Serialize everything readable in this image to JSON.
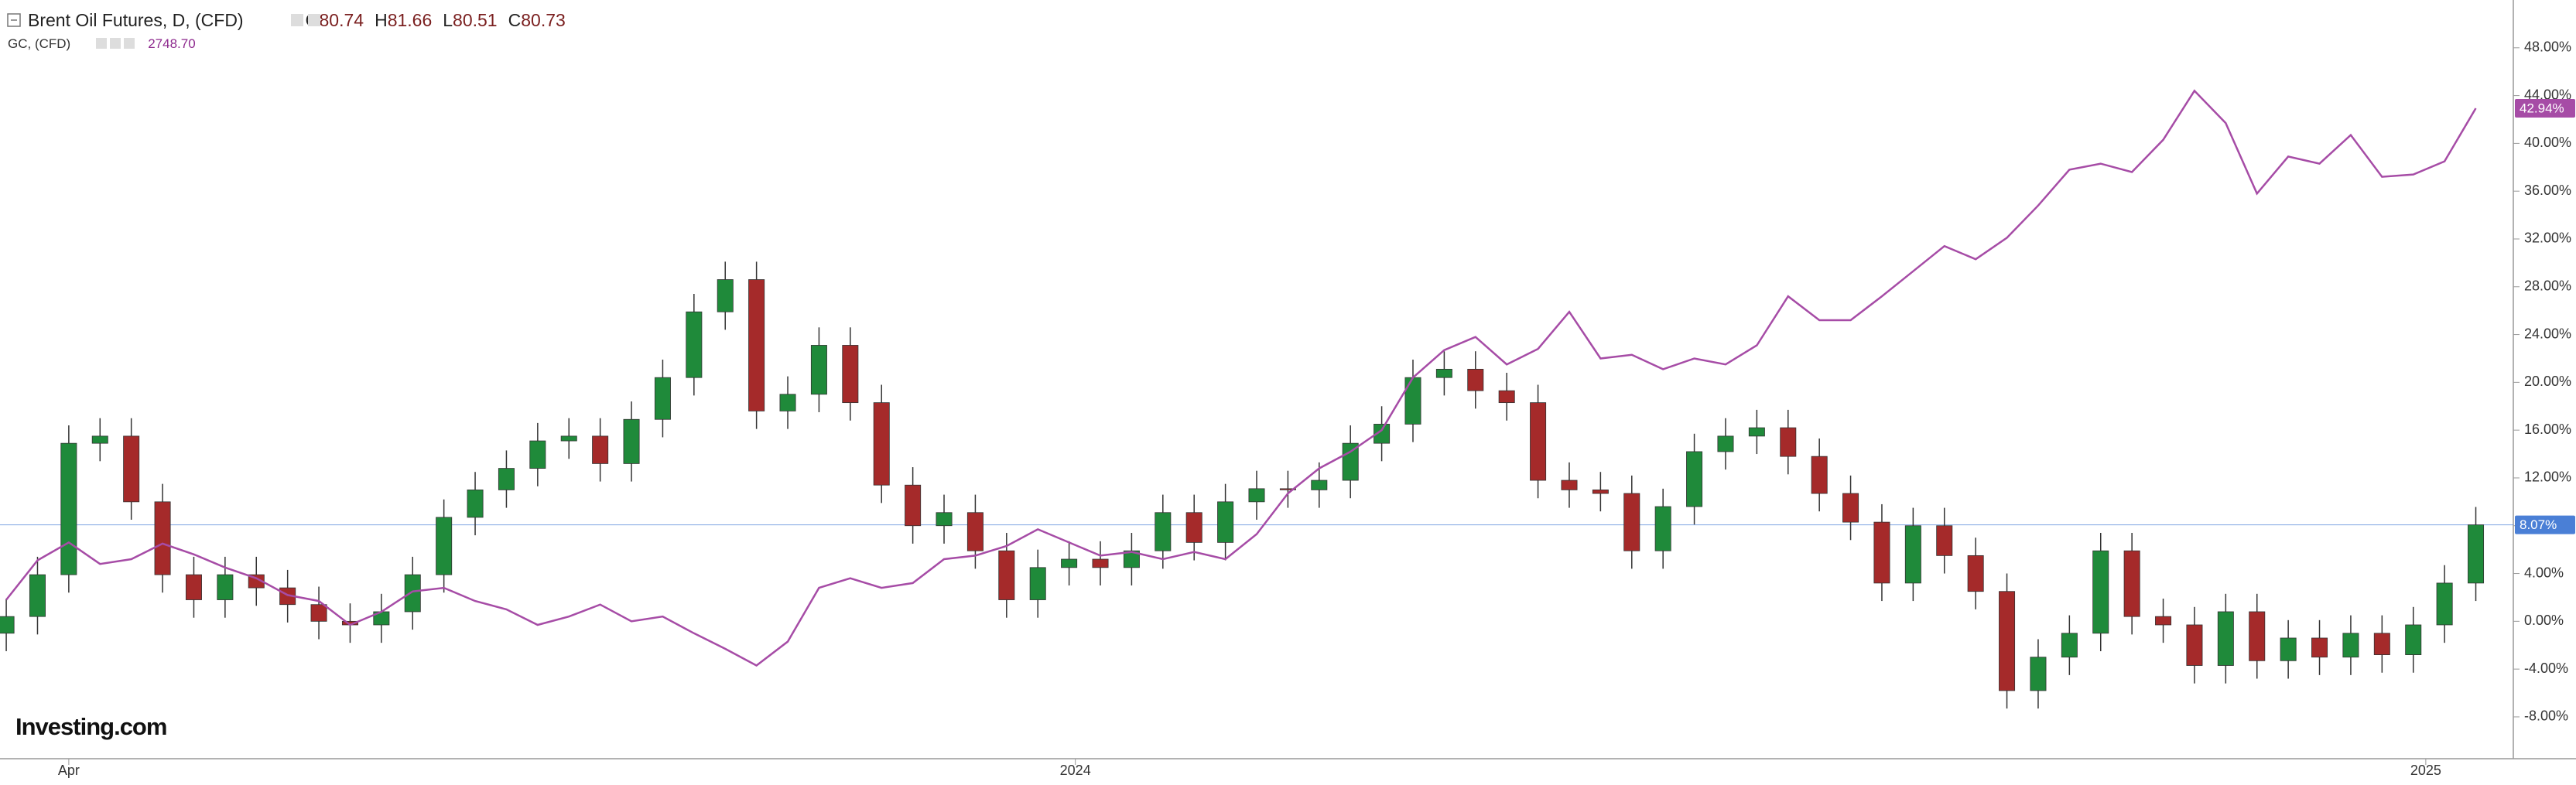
{
  "chart_data": {
    "type": "candlestick",
    "watermark": "Investing.com",
    "ylim": [
      -11.5,
      52
    ],
    "yticks": [
      {
        "value": -8,
        "label": "-8.00%"
      },
      {
        "value": -4,
        "label": "-4.00%"
      },
      {
        "value": 0,
        "label": "0.00%"
      },
      {
        "value": 4,
        "label": "4.00%"
      },
      {
        "value": 8,
        "label": "8.00%"
      },
      {
        "value": 12,
        "label": "12.00%"
      },
      {
        "value": 16,
        "label": "16.00%"
      },
      {
        "value": 20,
        "label": "20.00%"
      },
      {
        "value": 24,
        "label": "24.00%"
      },
      {
        "value": 28,
        "label": "28.00%"
      },
      {
        "value": 32,
        "label": "32.00%"
      },
      {
        "value": 36,
        "label": "36.00%"
      },
      {
        "value": 40,
        "label": "40.00%"
      },
      {
        "value": 44,
        "label": "44.00%"
      },
      {
        "value": 48,
        "label": "48.00%"
      }
    ],
    "xlim": [
      -0.2,
      80.2
    ],
    "xticks": [
      {
        "value": 2,
        "label": "Apr"
      },
      {
        "value": 34.2,
        "label": "2024"
      },
      {
        "value": 77.4,
        "label": "2025"
      }
    ],
    "series": [
      {
        "name": "Brent Oil Futures, D, (CFD)",
        "type": "candlestick",
        "up_color": "#1f8a3a",
        "down_color": "#a52a2a",
        "ohlc": [
          {
            "name": "O",
            "value": 80.74
          },
          {
            "name": "H",
            "value": 81.66
          },
          {
            "name": "L",
            "value": 80.51
          },
          {
            "name": "C",
            "value": 80.73
          }
        ],
        "last": {
          "value": 8.07,
          "label": "8.07%"
        },
        "last_color": "#4a7fd6",
        "open": [
          -1.0,
          0.4,
          3.9,
          14.9,
          15.5,
          10.0,
          3.9,
          1.8,
          3.9,
          2.8,
          1.4,
          0,
          -0.3,
          0.8,
          3.9,
          8.7,
          11.0,
          12.8,
          15.1,
          15.5,
          13.2,
          16.9,
          20.4,
          25.9,
          28.6,
          17.6,
          19.0,
          23.1,
          18.3,
          11.4,
          8.0,
          9.1,
          5.9,
          1.8,
          4.5,
          5.2,
          4.5,
          5.9,
          9.1,
          6.6,
          10.0,
          11.1,
          11.0,
          11.8,
          14.9,
          16.5,
          20.4,
          21.1,
          19.3,
          18.3,
          11.8,
          11.0,
          10.7,
          5.9,
          9.6,
          14.2,
          15.5,
          16.2,
          13.8,
          10.7,
          8.3,
          3.2,
          8.0,
          5.5,
          2.5,
          -5.8,
          -3.0,
          -1.0,
          5.9,
          0.4,
          -0.3,
          -3.7,
          0.8,
          -3.3,
          -1.4,
          -3.0,
          -1.0,
          -2.8,
          -0.3,
          3.2
        ],
        "high": [
          1.9,
          5.4,
          16.4,
          17.0,
          17.0,
          11.5,
          5.4,
          5.4,
          5.4,
          4.3,
          2.9,
          1.5,
          2.3,
          5.4,
          10.2,
          12.5,
          14.3,
          16.6,
          17.0,
          17.0,
          18.4,
          21.9,
          27.4,
          30.1,
          30.1,
          20.5,
          24.6,
          24.6,
          19.8,
          12.9,
          10.6,
          10.6,
          7.4,
          6.0,
          6.7,
          6.7,
          7.4,
          10.6,
          10.6,
          11.5,
          12.6,
          12.6,
          13.3,
          16.4,
          18.0,
          21.9,
          22.6,
          22.6,
          20.8,
          19.8,
          13.3,
          12.5,
          12.2,
          11.1,
          15.7,
          17.0,
          17.7,
          17.7,
          15.3,
          12.2,
          9.8,
          9.5,
          9.5,
          7.0,
          4.0,
          -1.5,
          0.5,
          7.4,
          7.4,
          1.9,
          1.2,
          2.3,
          2.3,
          0.1,
          0.1,
          0.5,
          0.5,
          1.2,
          4.7,
          9.57
        ],
        "low": [
          -2.5,
          -1.1,
          2.4,
          13.4,
          8.5,
          2.4,
          0.3,
          0.3,
          1.3,
          -0.1,
          -1.5,
          -1.8,
          -1.8,
          -0.7,
          2.4,
          7.2,
          9.5,
          11.3,
          13.6,
          11.7,
          11.7,
          15.4,
          18.9,
          24.4,
          16.1,
          16.1,
          17.5,
          16.8,
          9.9,
          6.5,
          6.5,
          4.4,
          0.3,
          0.3,
          3.0,
          3.0,
          3.0,
          4.4,
          5.1,
          5.1,
          8.5,
          9.5,
          9.5,
          10.3,
          13.4,
          15.0,
          18.9,
          17.8,
          16.8,
          10.3,
          9.5,
          9.2,
          4.4,
          4.4,
          8.1,
          12.7,
          14.0,
          12.3,
          9.2,
          6.8,
          1.7,
          1.7,
          4.0,
          1.0,
          -7.3,
          -7.3,
          -4.5,
          -2.5,
          -1.1,
          -1.8,
          -5.2,
          -5.2,
          -4.8,
          -4.8,
          -4.5,
          -4.5,
          -4.3,
          -4.3,
          -1.8,
          1.7
        ],
        "close": [
          0.4,
          3.9,
          14.9,
          15.5,
          10.0,
          3.9,
          1.8,
          3.9,
          2.8,
          1.4,
          0,
          -0.3,
          0.8,
          3.9,
          8.7,
          11.0,
          12.8,
          15.1,
          15.5,
          13.2,
          16.9,
          20.4,
          25.9,
          28.6,
          17.6,
          19.0,
          23.1,
          18.3,
          11.4,
          8.0,
          9.1,
          5.9,
          1.8,
          4.5,
          5.2,
          4.5,
          5.9,
          9.1,
          6.6,
          10.0,
          11.1,
          11.0,
          11.8,
          14.9,
          16.5,
          20.4,
          21.1,
          19.3,
          18.3,
          11.8,
          11.0,
          10.7,
          5.9,
          9.6,
          14.2,
          15.5,
          16.2,
          13.8,
          10.7,
          8.3,
          3.2,
          8.0,
          5.5,
          2.5,
          -5.8,
          -3.0,
          -1.0,
          5.9,
          0.4,
          -0.3,
          -3.7,
          0.8,
          -3.3,
          -1.4,
          -3.0,
          -1.0,
          -2.8,
          -0.3,
          3.2,
          8.07
        ]
      },
      {
        "name": "GC, (CFD)",
        "type": "line",
        "color": "#a64ca6",
        "price": {
          "value": 2748.7,
          "label": "2748.70"
        },
        "last": {
          "value": 42.94,
          "label": "42.94%"
        },
        "values": [
          1.8,
          5.1,
          6.6,
          4.8,
          5.2,
          6.5,
          5.6,
          4.5,
          3.6,
          2.2,
          1.7,
          -0.3,
          0.8,
          2.5,
          2.8,
          1.7,
          1.0,
          -0.3,
          0.4,
          1.4,
          0,
          0.4,
          -1.0,
          -2.3,
          -3.7,
          -1.7,
          2.8,
          3.6,
          2.8,
          3.2,
          5.2,
          5.5,
          6.3,
          7.7,
          6.6,
          5.5,
          5.8,
          5.2,
          5.8,
          5.2,
          7.3,
          10.7,
          12.8,
          14.2,
          16.0,
          20.4,
          22.7,
          23.8,
          21.5,
          22.8,
          25.9,
          22.0,
          22.3,
          21.1,
          22.0,
          21.5,
          23.1,
          27.2,
          25.2,
          25.2,
          27.2,
          29.3,
          31.4,
          30.3,
          32.1,
          34.8,
          37.8,
          38.3,
          37.6,
          40.3,
          44.4,
          41.7,
          35.8,
          38.9,
          38.3,
          40.7,
          37.2,
          37.4,
          38.5,
          42.94
        ]
      }
    ]
  }
}
